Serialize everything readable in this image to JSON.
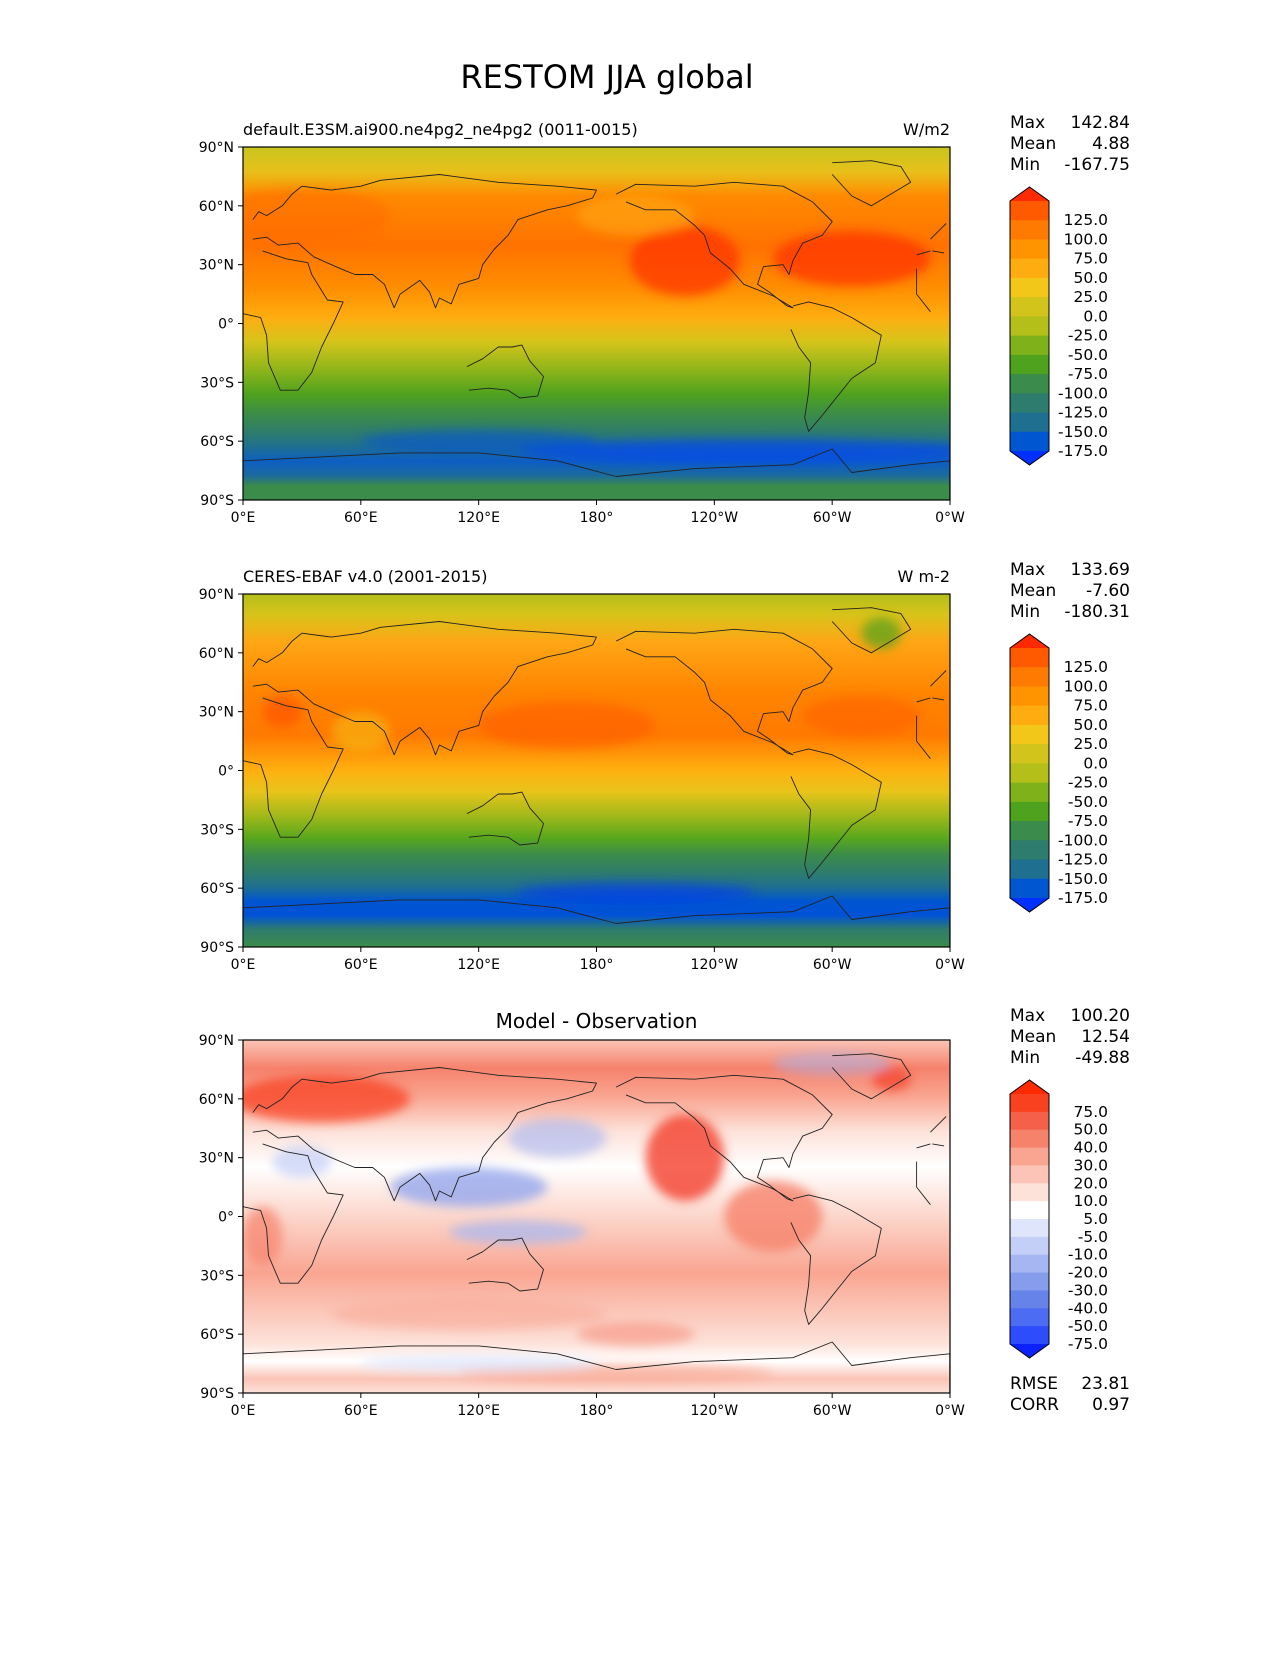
{
  "figure": {
    "title": "RESTOM JJA global"
  },
  "chart_data": [
    {
      "type": "heatmap",
      "id": "model",
      "title_left": "default.E3SM.ai900.ne4pg2_ne4pg2 (0011-0015)",
      "title_center": "",
      "units": "W/m2",
      "x_ticks": [
        "0°E",
        "60°E",
        "120°E",
        "180°",
        "120°W",
        "60°W",
        "0°W"
      ],
      "y_ticks": [
        "90°N",
        "60°N",
        "30°N",
        "0°",
        "30°S",
        "60°S",
        "90°S"
      ],
      "xlim": [
        0,
        360
      ],
      "ylim": [
        -90,
        90
      ],
      "stats": [
        {
          "label": "Max",
          "value": "142.84"
        },
        {
          "label": "Mean",
          "value": "4.88"
        },
        {
          "label": "Min",
          "value": "-167.75"
        }
      ],
      "colorbar": {
        "labels": [
          "125.0",
          "100.0",
          "75.0",
          "50.0",
          "25.0",
          "0.0",
          "-25.0",
          "-50.0",
          "-75.0",
          "-100.0",
          "-125.0",
          "-150.0",
          "-175.0"
        ],
        "colors": [
          "#ff2a00",
          "#ff5a00",
          "#ff7a00",
          "#ff9400",
          "#ffac10",
          "#f3c61a",
          "#d2c41a",
          "#b4bf1a",
          "#7fb21a",
          "#4fa21e",
          "#3b8b4b",
          "#2e7c6e",
          "#1f6f91",
          "#0055d0",
          "#0030ff"
        ]
      }
    },
    {
      "type": "heatmap",
      "id": "obs",
      "title_left": "CERES-EBAF v4.0 (2001-2015)",
      "title_center": "",
      "units": "W m-2",
      "x_ticks": [
        "0°E",
        "60°E",
        "120°E",
        "180°",
        "120°W",
        "60°W",
        "0°W"
      ],
      "y_ticks": [
        "90°N",
        "60°N",
        "30°N",
        "0°",
        "30°S",
        "60°S",
        "90°S"
      ],
      "xlim": [
        0,
        360
      ],
      "ylim": [
        -90,
        90
      ],
      "stats": [
        {
          "label": "Max",
          "value": "133.69"
        },
        {
          "label": "Mean",
          "value": "-7.60"
        },
        {
          "label": "Min",
          "value": "-180.31"
        }
      ],
      "colorbar": {
        "labels": [
          "125.0",
          "100.0",
          "75.0",
          "50.0",
          "25.0",
          "0.0",
          "-25.0",
          "-50.0",
          "-75.0",
          "-100.0",
          "-125.0",
          "-150.0",
          "-175.0"
        ],
        "colors": [
          "#ff2a00",
          "#ff5a00",
          "#ff7a00",
          "#ff9400",
          "#ffac10",
          "#f3c61a",
          "#d2c41a",
          "#b4bf1a",
          "#7fb21a",
          "#4fa21e",
          "#3b8b4b",
          "#2e7c6e",
          "#1f6f91",
          "#0055d0",
          "#0030ff"
        ]
      }
    },
    {
      "type": "heatmap",
      "id": "diff",
      "title_left": "",
      "title_center": "Model - Observation",
      "units": "",
      "x_ticks": [
        "0°E",
        "60°E",
        "120°E",
        "180°",
        "120°W",
        "60°W",
        "0°W"
      ],
      "y_ticks": [
        "90°N",
        "60°N",
        "30°N",
        "0°",
        "30°S",
        "60°S",
        "90°S"
      ],
      "xlim": [
        0,
        360
      ],
      "ylim": [
        -90,
        90
      ],
      "stats": [
        {
          "label": "Max",
          "value": "100.20"
        },
        {
          "label": "Mean",
          "value": "12.54"
        },
        {
          "label": "Min",
          "value": "-49.88"
        }
      ],
      "extra_stats": [
        {
          "label": "RMSE",
          "value": "23.81"
        },
        {
          "label": "CORR",
          "value": "0.97"
        }
      ],
      "colorbar": {
        "labels": [
          "75.0",
          "50.0",
          "40.0",
          "30.0",
          "20.0",
          "10.0",
          "5.0",
          "-5.0",
          "-10.0",
          "-20.0",
          "-30.0",
          "-40.0",
          "-50.0",
          "-75.0"
        ],
        "colors": [
          "#ff2a00",
          "#f8411f",
          "#f4604a",
          "#f6826c",
          "#f9a591",
          "#fbc4b6",
          "#fde2da",
          "#ffffff",
          "#dfe6fb",
          "#c3cff7",
          "#a5b6f2",
          "#869ced",
          "#6683e9",
          "#4c6cf4",
          "#2d4cfb",
          "#0b22ff"
        ]
      }
    }
  ]
}
